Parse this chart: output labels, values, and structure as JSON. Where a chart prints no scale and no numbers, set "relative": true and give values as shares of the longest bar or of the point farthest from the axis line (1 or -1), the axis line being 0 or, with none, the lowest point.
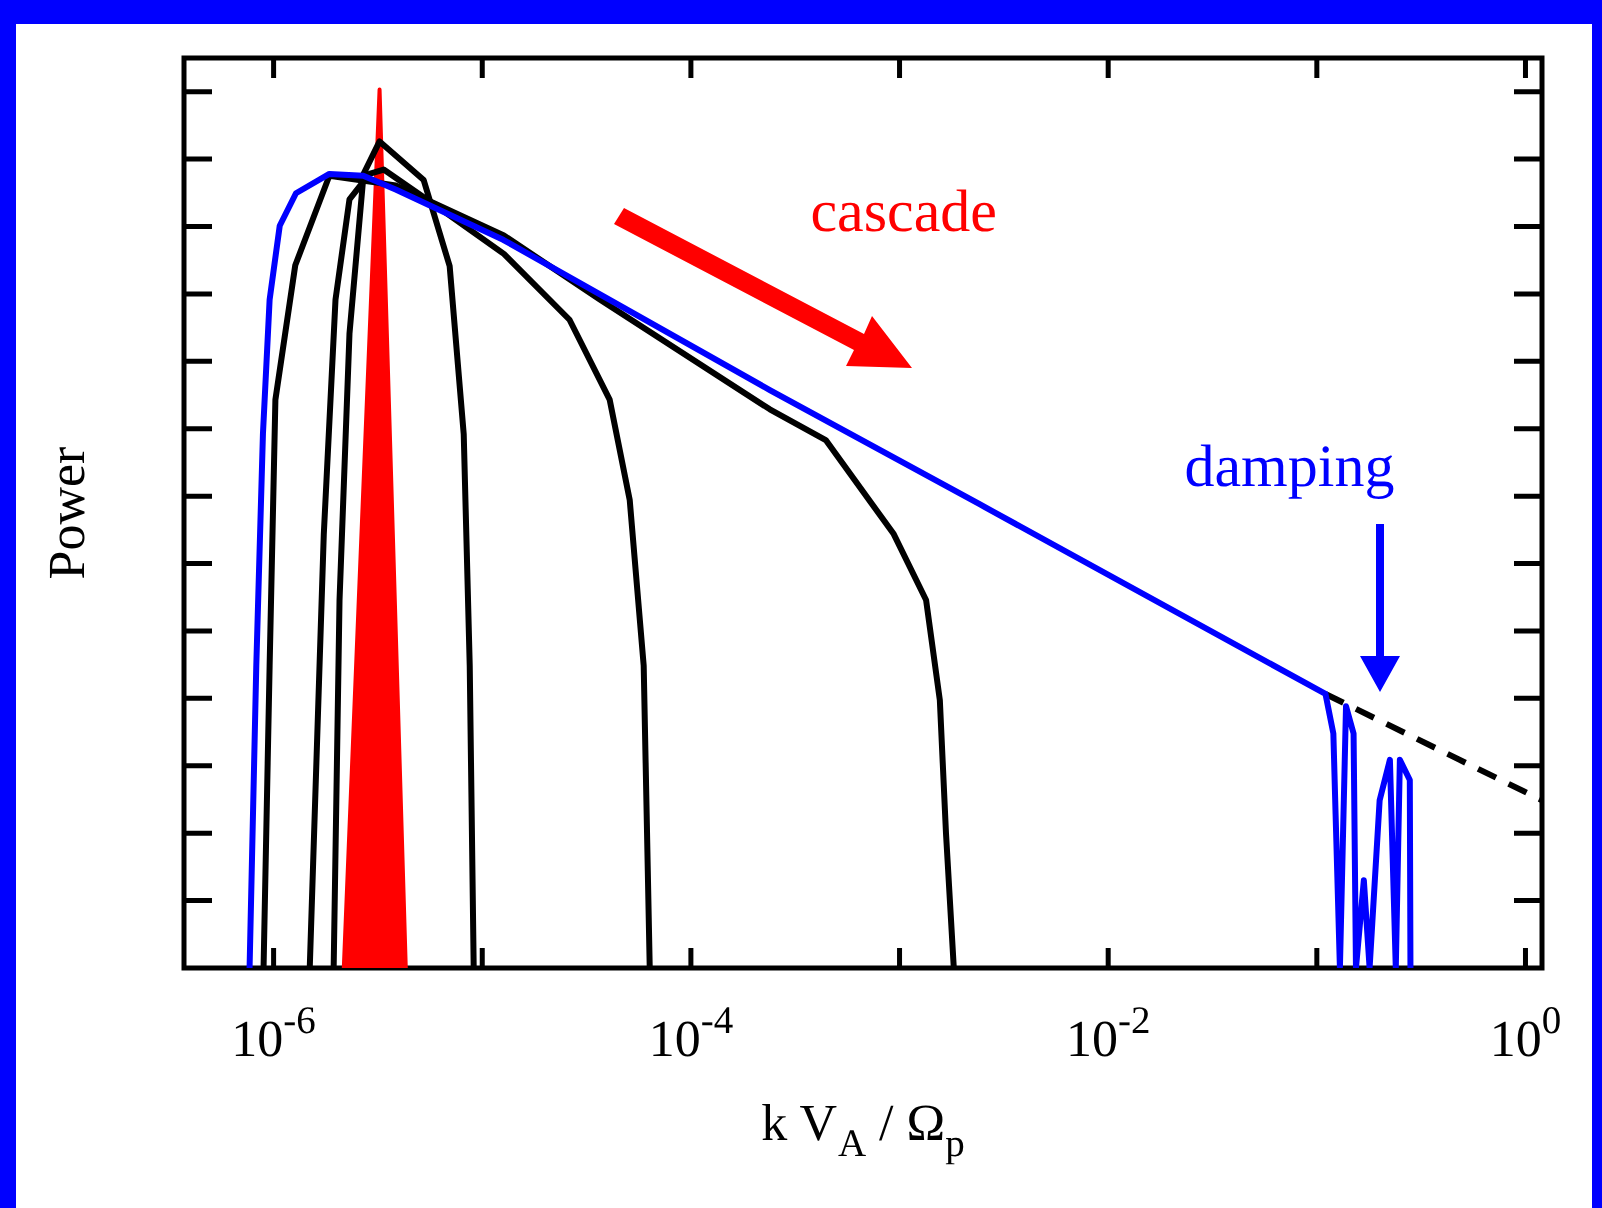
{
  "chart_data": {
    "type": "line",
    "relative": true,
    "xlabel": "k V$_{A}$ / Ω$_{p}$",
    "ylabel": "Power",
    "log": "x",
    "xlim": [
      3.72e-07,
      1.2
    ],
    "xticks": [
      {
        "value": 1e-06,
        "label": "10$^{-6}$"
      },
      {
        "value": 1e-05,
        "label": null
      },
      {
        "value": 0.0001,
        "label": "10$^{-4}$"
      },
      {
        "value": 0.001,
        "label": null
      },
      {
        "value": 0.01,
        "label": "10$^{-2}$"
      },
      {
        "value": 0.1,
        "label": null
      },
      {
        "value": 1,
        "label": "10$^{0}$"
      }
    ],
    "legend": false,
    "grid": false,
    "marker": "none",
    "annotations": [
      "cascade",
      "damping"
    ],
    "series": [
      {
        "type": "area",
        "color": "#ff0000",
        "x": [
          2.17e-06,
          3.22e-06,
          4.3e-06
        ],
        "values": [
          0,
          1,
          0
        ]
      },
      {
        "color": "#000000",
        "x": [
          1.94e-06,
          2.07e-06,
          2.31e-06,
          2.7e-06,
          3.22e-06,
          5.24e-06,
          6.98e-06,
          8.15e-06,
          8.71e-06,
          9.1e-06
        ],
        "values": [
          0,
          0.419,
          0.722,
          0.904,
          0.941,
          0.897,
          0.799,
          0.608,
          0.344,
          0
        ]
      },
      {
        "color": "#000000",
        "x": [
          1.49e-06,
          1.74e-06,
          1.98e-06,
          2.31e-06,
          2.88e-06,
          3.37e-06,
          5.98e-06,
          1.27e-05,
          2.62e-05,
          4.08e-05,
          5.09e-05,
          5.94e-05,
          6.35e-05
        ],
        "values": [
          0,
          0.494,
          0.761,
          0.875,
          0.904,
          0.909,
          0.868,
          0.813,
          0.738,
          0.647,
          0.533,
          0.344,
          0
        ]
      },
      {
        "color": "#000000",
        "x": [
          8.95e-07,
          9.57e-07,
          1.02e-06,
          1.27e-06,
          1.85e-06,
          3.85e-06,
          1.27e-05,
          3.66e-05,
          0.000239,
          0.000443,
          0.000938,
          0.00134,
          0.00156,
          0.00167,
          0.00182
        ],
        "values": [
          0,
          0.344,
          0.647,
          0.8,
          0.902,
          0.891,
          0.834,
          0.761,
          0.636,
          0.601,
          0.494,
          0.419,
          0.305,
          0.153,
          0
        ]
      },
      {
        "color": "#000000",
        "line_style": "dashed",
        "x": [
          0.11,
          1.2
        ],
        "values": [
          0.312,
          0.191
        ]
      },
      {
        "color": "#0000ff",
        "x": [
          7.67e-07,
          8.26e-07,
          8.89e-07,
          9.57e-07,
          1.07e-06,
          1.28e-06,
          1.85e-06,
          2.69e-06,
          3.87e-06,
          1.26e-05,
          0.000239,
          0.00242,
          0.11,
          0.12,
          0.123,
          0.129,
          0.138,
          0.15,
          0.154,
          0.168,
          0.179,
          0.2,
          0.224,
          0.239,
          0.25,
          0.279,
          0.281
        ],
        "values": [
          0,
          0.344,
          0.608,
          0.761,
          0.845,
          0.882,
          0.904,
          0.902,
          0.886,
          0.829,
          0.658,
          0.528,
          0.312,
          0.267,
          0.175,
          0,
          0.298,
          0.267,
          0,
          0.1,
          0,
          0.191,
          0.237,
          0,
          0.237,
          0.214,
          0
        ]
      }
    ]
  }
}
